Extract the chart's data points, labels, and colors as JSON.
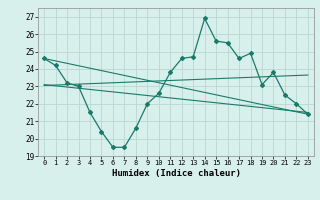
{
  "title": "",
  "xlabel": "Humidex (Indice chaleur)",
  "bg_color": "#d8f0ec",
  "grid_color": "#b8d8d0",
  "line_color": "#1a7a6a",
  "xlim": [
    -0.5,
    23.5
  ],
  "ylim": [
    19,
    27.5
  ],
  "yticks": [
    19,
    20,
    21,
    22,
    23,
    24,
    25,
    26,
    27
  ],
  "xticks": [
    0,
    1,
    2,
    3,
    4,
    5,
    6,
    7,
    8,
    9,
    10,
    11,
    12,
    13,
    14,
    15,
    16,
    17,
    18,
    19,
    20,
    21,
    22,
    23
  ],
  "series1_x": [
    0,
    1,
    2,
    3,
    4,
    5,
    6,
    7,
    8,
    9,
    10,
    11,
    12,
    13,
    14,
    15,
    16,
    17,
    18,
    19,
    20,
    21,
    22,
    23
  ],
  "series1_y": [
    24.6,
    24.2,
    23.2,
    23.0,
    21.5,
    20.4,
    19.5,
    19.5,
    20.6,
    22.0,
    22.6,
    23.8,
    24.6,
    24.7,
    26.9,
    25.6,
    25.5,
    24.6,
    24.9,
    23.1,
    23.8,
    22.5,
    22.0,
    21.4
  ],
  "series2_x": [
    0,
    23
  ],
  "series2_y": [
    24.6,
    21.4
  ],
  "series3_x": [
    0,
    23
  ],
  "series3_y": [
    23.1,
    21.5
  ],
  "series4_x": [
    0,
    23
  ],
  "series4_y": [
    23.05,
    23.65
  ]
}
